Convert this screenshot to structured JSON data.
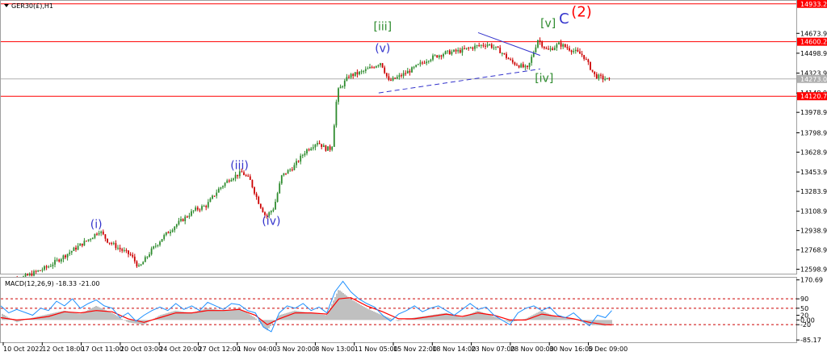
{
  "chart_data": [
    {
      "type": "candlestick",
      "symbol_label": "GER30(£),H1",
      "ylim": [
        12560,
        14960
      ],
      "y_ticks": [
        12598.9,
        12768.9,
        12938.9,
        13108.9,
        13283.9,
        13453.9,
        13628.9,
        13798.9,
        13978.9,
        14148.9,
        14323.9,
        14498.9,
        14673.9
      ],
      "x_labels": [
        "10 Oct 2022",
        "12 Oct 18:00",
        "17 Oct 11:00",
        "20 Oct 03:00",
        "24 Oct 20:00",
        "27 Oct 12:00",
        "1 Nov 04:00",
        "3 Nov 20:00",
        "8 Nov 13:00",
        "11 Nov 05:00",
        "15 Nov 22:00",
        "18 Nov 14:00",
        "23 Nov 07:00",
        "28 Nov 00:00",
        "30 Nov 16:00",
        "5 Dec 09:00"
      ],
      "horizontal_levels": [
        {
          "value": 14933.2,
          "label": "14933.2",
          "color": "#ff0000"
        },
        {
          "value": 14600.2,
          "label": "14600.2",
          "color": "#ff0000"
        },
        {
          "value": 14120.7,
          "label": "14120.7",
          "color": "#ff0000"
        },
        {
          "value": 14273.0,
          "label": "14273.0",
          "color": "#b0b0b0",
          "current_price": true
        }
      ],
      "price_path": [
        [
          0,
          12480
        ],
        [
          0.03,
          12530
        ],
        [
          0.06,
          12620
        ],
        [
          0.09,
          12760
        ],
        [
          0.115,
          12880
        ],
        [
          0.125,
          12940
        ],
        [
          0.135,
          12850
        ],
        [
          0.15,
          12780
        ],
        [
          0.165,
          12720
        ],
        [
          0.175,
          12610
        ],
        [
          0.19,
          12760
        ],
        [
          0.205,
          12880
        ],
        [
          0.22,
          12980
        ],
        [
          0.245,
          13120
        ],
        [
          0.26,
          13160
        ],
        [
          0.275,
          13300
        ],
        [
          0.29,
          13400
        ],
        [
          0.305,
          13450
        ],
        [
          0.315,
          13380
        ],
        [
          0.325,
          13200
        ],
        [
          0.335,
          13060
        ],
        [
          0.345,
          13140
        ],
        [
          0.355,
          13420
        ],
        [
          0.37,
          13500
        ],
        [
          0.385,
          13640
        ],
        [
          0.4,
          13720
        ],
        [
          0.41,
          13660
        ],
        [
          0.418,
          13660
        ],
        [
          0.425,
          14160
        ],
        [
          0.44,
          14300
        ],
        [
          0.455,
          14330
        ],
        [
          0.47,
          14380
        ],
        [
          0.48,
          14420
        ],
        [
          0.49,
          14250
        ],
        [
          0.505,
          14300
        ],
        [
          0.52,
          14360
        ],
        [
          0.54,
          14450
        ],
        [
          0.56,
          14500
        ],
        [
          0.58,
          14520
        ],
        [
          0.6,
          14560
        ],
        [
          0.615,
          14580
        ],
        [
          0.63,
          14520
        ],
        [
          0.645,
          14420
        ],
        [
          0.665,
          14360
        ],
        [
          0.678,
          14620
        ],
        [
          0.69,
          14520
        ],
        [
          0.705,
          14580
        ],
        [
          0.72,
          14530
        ],
        [
          0.735,
          14480
        ],
        [
          0.75,
          14300
        ],
        [
          0.76,
          14280
        ],
        [
          0.768,
          14260
        ]
      ],
      "wave_labels": [
        {
          "text": "(i)",
          "x": 0.12,
          "y": 12960,
          "color": "#3333cc"
        },
        {
          "text": "(iii)",
          "x": 0.3,
          "y": 13480,
          "color": "#3333cc"
        },
        {
          "text": "(iv)",
          "x": 0.34,
          "y": 12990,
          "color": "#3333cc"
        },
        {
          "text": "(v)",
          "x": 0.48,
          "y": 14510,
          "color": "#3333cc"
        },
        {
          "text": "[iii]",
          "x": 0.48,
          "y": 14700,
          "color": "#2e8b2e"
        },
        {
          "text": "[iv]",
          "x": 0.683,
          "y": 14245,
          "color": "#2e8b2e"
        },
        {
          "text": "[v]",
          "x": 0.688,
          "y": 14730,
          "color": "#2e8b2e"
        },
        {
          "text": "C",
          "x": 0.708,
          "y": 14760,
          "color": "#3333cc"
        },
        {
          "text": "(2)",
          "x": 0.73,
          "y": 14820,
          "color": "#ff0000"
        }
      ],
      "trendlines": [
        {
          "from": [
            0.475,
            14150
          ],
          "to": [
            0.678,
            14360
          ],
          "color": "#3333cc",
          "style": "dashed"
        },
        {
          "from": [
            0.6,
            14680
          ],
          "to": [
            0.678,
            14480
          ],
          "color": "#3333cc",
          "style": "solid"
        }
      ],
      "colors": {
        "bull": "#2e8b2e",
        "bear": "#cc0000"
      }
    },
    {
      "type": "macd",
      "label": "MACD(12,26,9) -18.33 -21.00",
      "ylim": [
        -95,
        180
      ],
      "y_ticks": [
        170.69,
        90,
        50,
        20,
        0.0,
        -20,
        -85.17
      ],
      "y_tick_labels": [
        "170.69",
        "90",
        "50",
        "20",
        "0.00",
        "-20",
        "-85.17"
      ],
      "levels": [
        90,
        50,
        -20
      ],
      "histogram": [
        [
          0,
          30
        ],
        [
          0.02,
          -10
        ],
        [
          0.04,
          10
        ],
        [
          0.06,
          25
        ],
        [
          0.08,
          40
        ],
        [
          0.1,
          25
        ],
        [
          0.12,
          60
        ],
        [
          0.14,
          30
        ],
        [
          0.16,
          -10
        ],
        [
          0.18,
          -20
        ],
        [
          0.2,
          20
        ],
        [
          0.22,
          40
        ],
        [
          0.24,
          30
        ],
        [
          0.26,
          50
        ],
        [
          0.28,
          40
        ],
        [
          0.3,
          50
        ],
        [
          0.32,
          10
        ],
        [
          0.335,
          -45
        ],
        [
          0.35,
          20
        ],
        [
          0.37,
          40
        ],
        [
          0.39,
          30
        ],
        [
          0.41,
          20
        ],
        [
          0.425,
          130
        ],
        [
          0.44,
          90
        ],
        [
          0.46,
          50
        ],
        [
          0.48,
          20
        ],
        [
          0.5,
          -5
        ],
        [
          0.52,
          10
        ],
        [
          0.54,
          20
        ],
        [
          0.56,
          30
        ],
        [
          0.58,
          10
        ],
        [
          0.6,
          40
        ],
        [
          0.62,
          15
        ],
        [
          0.64,
          -10
        ],
        [
          0.66,
          5
        ],
        [
          0.68,
          40
        ],
        [
          0.7,
          10
        ],
        [
          0.72,
          5
        ],
        [
          0.74,
          -20
        ],
        [
          0.76,
          -25
        ],
        [
          0.768,
          -18
        ]
      ],
      "signal": [
        [
          0,
          10
        ],
        [
          0.02,
          0
        ],
        [
          0.04,
          5
        ],
        [
          0.06,
          15
        ],
        [
          0.08,
          35
        ],
        [
          0.1,
          30
        ],
        [
          0.12,
          40
        ],
        [
          0.14,
          35
        ],
        [
          0.16,
          5
        ],
        [
          0.18,
          -10
        ],
        [
          0.2,
          10
        ],
        [
          0.22,
          30
        ],
        [
          0.24,
          30
        ],
        [
          0.26,
          40
        ],
        [
          0.28,
          40
        ],
        [
          0.3,
          45
        ],
        [
          0.32,
          20
        ],
        [
          0.335,
          -20
        ],
        [
          0.35,
          5
        ],
        [
          0.37,
          30
        ],
        [
          0.39,
          30
        ],
        [
          0.41,
          25
        ],
        [
          0.425,
          90
        ],
        [
          0.44,
          95
        ],
        [
          0.46,
          60
        ],
        [
          0.48,
          35
        ],
        [
          0.5,
          5
        ],
        [
          0.52,
          5
        ],
        [
          0.54,
          15
        ],
        [
          0.56,
          25
        ],
        [
          0.58,
          15
        ],
        [
          0.6,
          30
        ],
        [
          0.62,
          20
        ],
        [
          0.64,
          0
        ],
        [
          0.66,
          0
        ],
        [
          0.68,
          25
        ],
        [
          0.7,
          15
        ],
        [
          0.72,
          5
        ],
        [
          0.74,
          -10
        ],
        [
          0.76,
          -20
        ],
        [
          0.768,
          -21
        ]
      ],
      "macd_line": [
        [
          0,
          60
        ],
        [
          0.01,
          30
        ],
        [
          0.02,
          45
        ],
        [
          0.04,
          20
        ],
        [
          0.05,
          50
        ],
        [
          0.06,
          40
        ],
        [
          0.07,
          80
        ],
        [
          0.08,
          60
        ],
        [
          0.09,
          90
        ],
        [
          0.1,
          50
        ],
        [
          0.11,
          70
        ],
        [
          0.12,
          85
        ],
        [
          0.13,
          60
        ],
        [
          0.14,
          50
        ],
        [
          0.15,
          10
        ],
        [
          0.16,
          30
        ],
        [
          0.17,
          -5
        ],
        [
          0.18,
          20
        ],
        [
          0.19,
          40
        ],
        [
          0.2,
          55
        ],
        [
          0.21,
          40
        ],
        [
          0.22,
          70
        ],
        [
          0.23,
          45
        ],
        [
          0.24,
          60
        ],
        [
          0.25,
          40
        ],
        [
          0.26,
          75
        ],
        [
          0.27,
          60
        ],
        [
          0.28,
          45
        ],
        [
          0.29,
          70
        ],
        [
          0.3,
          65
        ],
        [
          0.31,
          40
        ],
        [
          0.32,
          30
        ],
        [
          0.33,
          -30
        ],
        [
          0.34,
          -50
        ],
        [
          0.35,
          30
        ],
        [
          0.36,
          60
        ],
        [
          0.37,
          50
        ],
        [
          0.38,
          70
        ],
        [
          0.39,
          40
        ],
        [
          0.4,
          55
        ],
        [
          0.41,
          30
        ],
        [
          0.42,
          120
        ],
        [
          0.43,
          165
        ],
        [
          0.44,
          120
        ],
        [
          0.45,
          90
        ],
        [
          0.46,
          70
        ],
        [
          0.47,
          55
        ],
        [
          0.48,
          20
        ],
        [
          0.49,
          -5
        ],
        [
          0.5,
          25
        ],
        [
          0.51,
          40
        ],
        [
          0.52,
          60
        ],
        [
          0.53,
          35
        ],
        [
          0.54,
          50
        ],
        [
          0.55,
          60
        ],
        [
          0.56,
          40
        ],
        [
          0.57,
          20
        ],
        [
          0.58,
          45
        ],
        [
          0.59,
          70
        ],
        [
          0.6,
          45
        ],
        [
          0.61,
          55
        ],
        [
          0.62,
          20
        ],
        [
          0.63,
          0
        ],
        [
          0.64,
          -20
        ],
        [
          0.65,
          30
        ],
        [
          0.66,
          50
        ],
        [
          0.67,
          60
        ],
        [
          0.68,
          40
        ],
        [
          0.69,
          55
        ],
        [
          0.7,
          20
        ],
        [
          0.71,
          10
        ],
        [
          0.72,
          30
        ],
        [
          0.73,
          0
        ],
        [
          0.74,
          -25
        ],
        [
          0.75,
          20
        ],
        [
          0.76,
          10
        ],
        [
          0.768,
          40
        ]
      ],
      "colors": {
        "histogram": "#c0c0c0",
        "signal": "#ff0000",
        "macd_line": "#1e90ff",
        "levels": "#cc0000"
      }
    }
  ]
}
